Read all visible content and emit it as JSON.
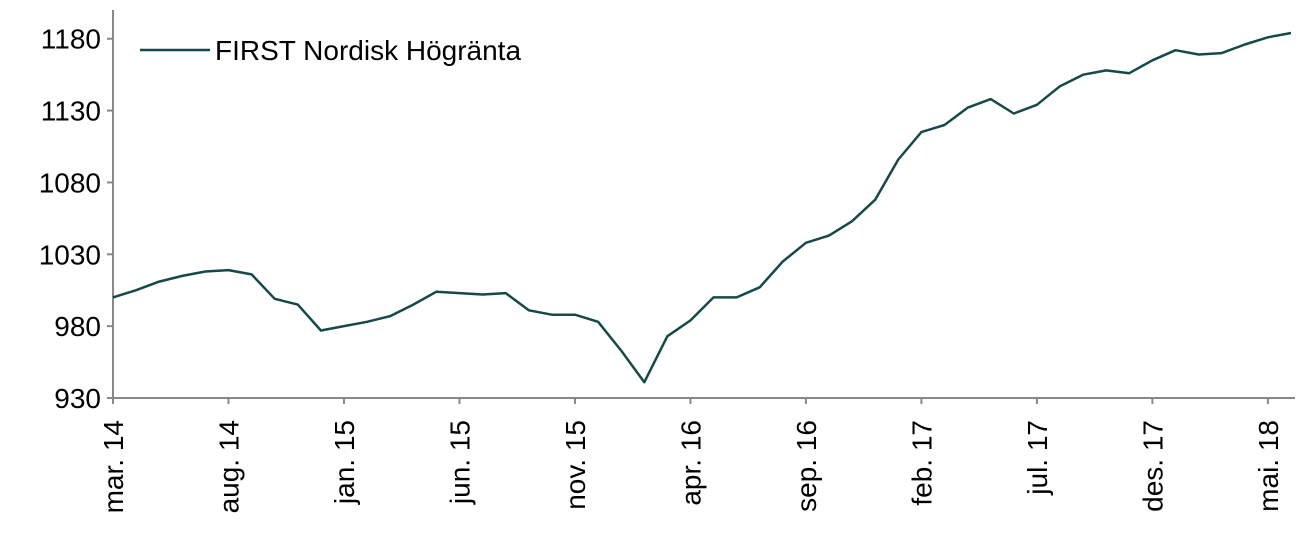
{
  "chart_data": {
    "type": "line",
    "x": [
      "2014-03",
      "2014-04",
      "2014-05",
      "2014-06",
      "2014-07",
      "2014-08",
      "2014-09",
      "2014-10",
      "2014-11",
      "2014-12",
      "2015-01",
      "2015-02",
      "2015-03",
      "2015-04",
      "2015-05",
      "2015-06",
      "2015-07",
      "2015-08",
      "2015-09",
      "2015-10",
      "2015-11",
      "2015-12",
      "2016-01",
      "2016-02",
      "2016-03",
      "2016-04",
      "2016-05",
      "2016-06",
      "2016-07",
      "2016-08",
      "2016-09",
      "2016-10",
      "2016-11",
      "2016-12",
      "2017-01",
      "2017-02",
      "2017-03",
      "2017-04",
      "2017-05",
      "2017-06",
      "2017-07",
      "2017-08",
      "2017-09",
      "2017-10",
      "2017-11",
      "2017-12",
      "2018-01",
      "2018-02",
      "2018-03",
      "2018-04",
      "2018-05",
      "2018-06"
    ],
    "series": [
      {
        "name": "FIRST Nordisk Högränta",
        "color": "#16494a",
        "values": [
          1000,
          1005,
          1011,
          1015,
          1018,
          1019,
          1016,
          999,
          995,
          977,
          980,
          983,
          987,
          995,
          1004,
          1003,
          1002,
          1003,
          991,
          988,
          988,
          983,
          963,
          941,
          973,
          984,
          1000,
          1000,
          1007,
          1025,
          1038,
          1043,
          1053,
          1068,
          1096,
          1115,
          1120,
          1132,
          1138,
          1128,
          1134,
          1147,
          1155,
          1158,
          1156,
          1165,
          1172,
          1169,
          1170,
          1176,
          1181,
          1184
        ]
      }
    ],
    "xlim": [
      "2014-03",
      "2018-06"
    ],
    "xticks": [
      {
        "value": "2014-03",
        "label": "mar. 14"
      },
      {
        "value": "2014-08",
        "label": "aug. 14"
      },
      {
        "value": "2015-01",
        "label": "jan. 15"
      },
      {
        "value": "2015-06",
        "label": "jun. 15"
      },
      {
        "value": "2015-11",
        "label": "nov. 15"
      },
      {
        "value": "2016-04",
        "label": "apr. 16"
      },
      {
        "value": "2016-09",
        "label": "sep. 16"
      },
      {
        "value": "2017-02",
        "label": "feb. 17"
      },
      {
        "value": "2017-07",
        "label": "jul. 17"
      },
      {
        "value": "2017-12",
        "label": "des. 17"
      },
      {
        "value": "2018-05",
        "label": "mai. 18"
      }
    ],
    "ylim": [
      930,
      1200
    ],
    "yticks": [
      930,
      980,
      1030,
      1080,
      1130,
      1180
    ],
    "grid": false,
    "legend": "upper left"
  }
}
